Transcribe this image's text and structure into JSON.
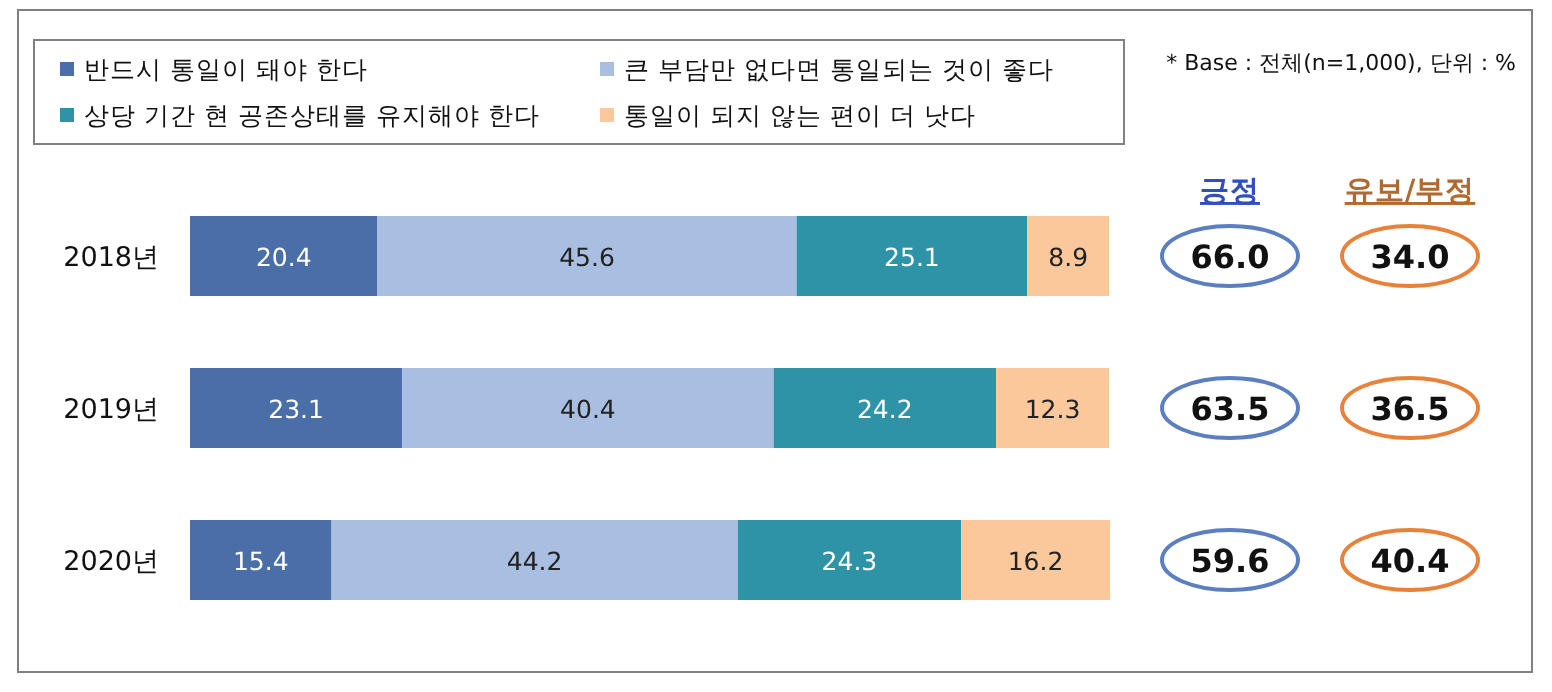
{
  "chart_data": {
    "type": "bar",
    "orientation": "horizontal",
    "stacked": true,
    "relative": false,
    "data_labels": true,
    "legend": "top",
    "categories": [
      "2018년",
      "2019년",
      "2020년"
    ],
    "series": [
      {
        "name": "반드시 통일이 돼야 한다",
        "color": "#4a6ea8",
        "values": [
          20.4,
          23.1,
          15.4
        ]
      },
      {
        "name": "큰 부담만 없다면 통일되는 것이 좋다",
        "color": "#a8bfe2",
        "values": [
          45.6,
          40.4,
          44.2
        ]
      },
      {
        "name": "상당 기간 현 공존상태를 유지해야 한다",
        "color": "#2f93a8",
        "values": [
          25.1,
          24.2,
          24.3
        ]
      },
      {
        "name": "통일이 되지 않는 편이 더 낫다",
        "color": "#fbc89c",
        "values": [
          8.9,
          12.3,
          16.2
        ]
      }
    ],
    "annotations": [
      "* Base : 전체(n=1,000), 단위 : %",
      "긍정",
      "유보/부정",
      "66.0",
      "34.0",
      "63.5",
      "36.5",
      "59.6",
      "40.4"
    ]
  }
}
